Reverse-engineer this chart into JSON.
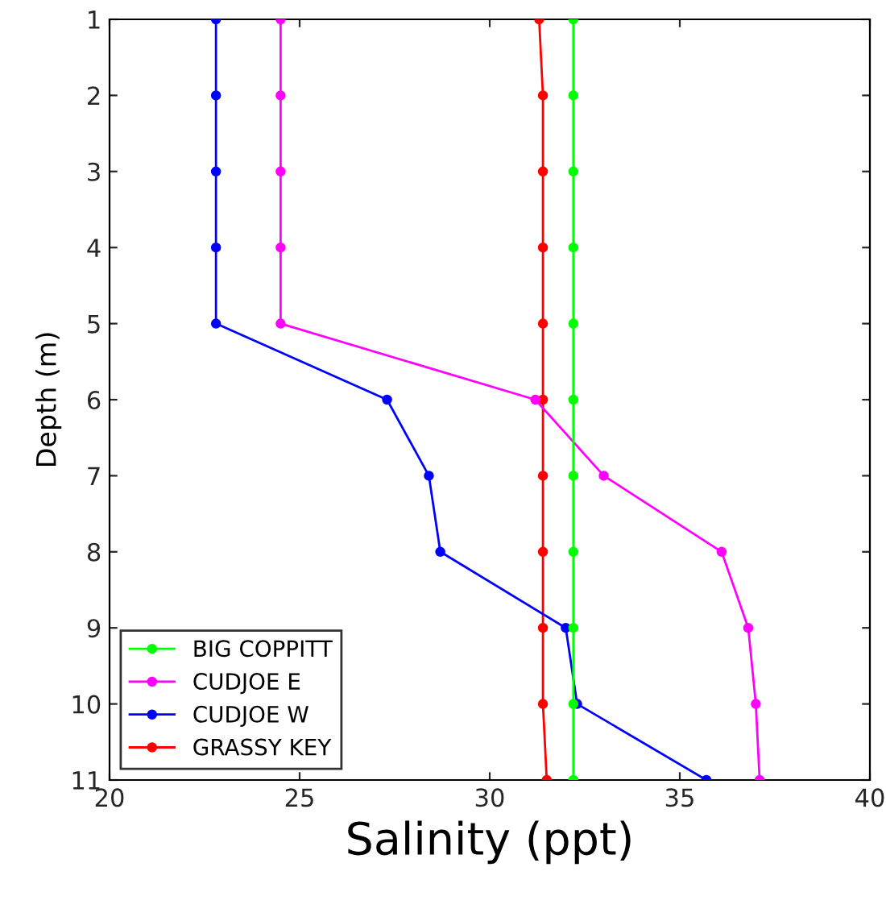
{
  "chart_data": {
    "type": "line",
    "xlabel": "Salinity (ppt)",
    "ylabel": "Depth (m)",
    "xlim": [
      20,
      40
    ],
    "xticks": [
      20,
      25,
      30,
      35,
      40
    ],
    "ylim": [
      11,
      1
    ],
    "yticks": [
      1,
      2,
      3,
      4,
      5,
      6,
      7,
      8,
      9,
      10,
      11
    ],
    "legend": "bottom left",
    "marker": "circle",
    "line_style": "solid",
    "series": [
      {
        "name": "BIG COPPITT",
        "color": "#00ff00",
        "x": [
          32.2,
          32.2,
          32.2,
          32.2,
          32.2,
          32.2,
          32.2,
          32.2,
          32.2,
          32.2,
          32.2
        ],
        "values": [
          1,
          2,
          3,
          4,
          5,
          6,
          7,
          8,
          9,
          10,
          11
        ]
      },
      {
        "name": "CUDJOE E",
        "color": "#ff00ff",
        "x": [
          24.5,
          24.5,
          24.5,
          24.5,
          24.5,
          31.2,
          33.0,
          36.1,
          36.8,
          37.0,
          37.1
        ],
        "values": [
          1,
          2,
          3,
          4,
          5,
          6,
          7,
          8,
          9,
          10,
          11
        ]
      },
      {
        "name": "CUDJOE W",
        "color": "#0000ff",
        "x": [
          22.8,
          22.8,
          22.8,
          22.8,
          22.8,
          27.3,
          28.4,
          28.7,
          32.0,
          32.3,
          35.7
        ],
        "values": [
          1,
          2,
          3,
          4,
          5,
          6,
          7,
          8,
          9,
          10,
          11
        ]
      },
      {
        "name": "GRASSY KEY",
        "color": "#ff0000",
        "x": [
          31.3,
          31.4,
          31.4,
          31.4,
          31.4,
          31.4,
          31.4,
          31.4,
          31.4,
          31.4,
          31.5
        ],
        "values": [
          1,
          2,
          3,
          4,
          5,
          6,
          7,
          8,
          9,
          10,
          11
        ]
      }
    ]
  }
}
